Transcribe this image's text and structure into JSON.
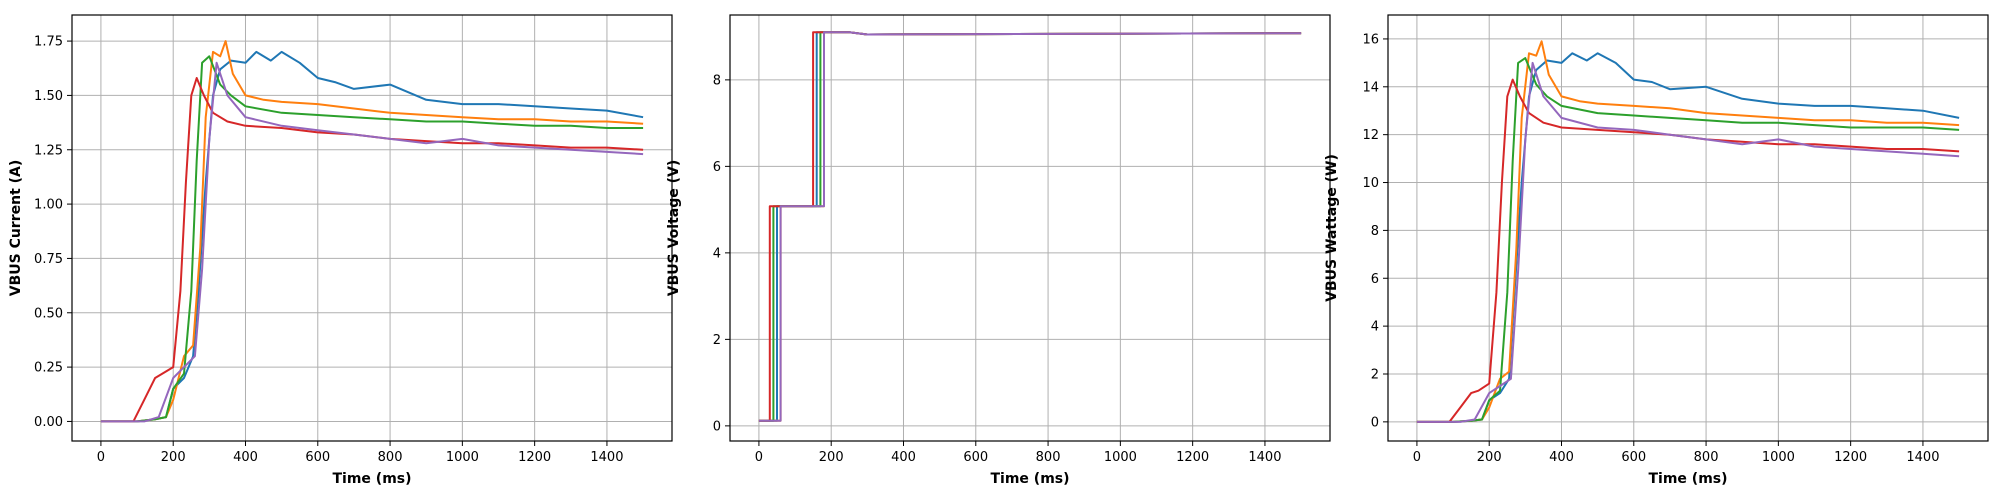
{
  "chart_data": [
    {
      "type": "line",
      "xlabel": "Time (ms)",
      "ylabel": "VBUS Current (A)",
      "xlim": [
        -80,
        1580
      ],
      "ylim": [
        -0.09,
        1.87
      ],
      "xticks": [
        0,
        200,
        400,
        600,
        800,
        1000,
        1200,
        1400
      ],
      "yticks": [
        0.0,
        0.25,
        0.5,
        0.75,
        1.0,
        1.25,
        1.5,
        1.75
      ],
      "ytick_labels": [
        "0.00",
        "0.25",
        "0.50",
        "0.75",
        "1.00",
        "1.25",
        "1.50",
        "1.75"
      ],
      "grid": true,
      "series": [
        {
          "color": "#1f77b4",
          "x": [
            0,
            100,
            150,
            180,
            200,
            230,
            255,
            270,
            290,
            310,
            330,
            360,
            400,
            430,
            470,
            500,
            550,
            600,
            650,
            700,
            800,
            900,
            1000,
            1100,
            1200,
            1300,
            1400,
            1500
          ],
          "y": [
            0,
            0,
            0.01,
            0.02,
            0.15,
            0.2,
            0.3,
            0.6,
            1.1,
            1.5,
            1.62,
            1.66,
            1.65,
            1.7,
            1.66,
            1.7,
            1.65,
            1.58,
            1.56,
            1.53,
            1.55,
            1.48,
            1.46,
            1.46,
            1.45,
            1.44,
            1.43,
            1.4
          ]
        },
        {
          "color": "#ff7f0e",
          "x": [
            0,
            100,
            150,
            180,
            200,
            230,
            255,
            275,
            290,
            310,
            330,
            345,
            365,
            400,
            450,
            500,
            600,
            700,
            800,
            900,
            1000,
            1100,
            1200,
            1300,
            1400,
            1500
          ],
          "y": [
            0,
            0,
            0.01,
            0.02,
            0.1,
            0.3,
            0.35,
            0.8,
            1.4,
            1.7,
            1.68,
            1.75,
            1.6,
            1.5,
            1.48,
            1.47,
            1.46,
            1.44,
            1.42,
            1.41,
            1.4,
            1.39,
            1.39,
            1.38,
            1.38,
            1.37
          ]
        },
        {
          "color": "#2ca02c",
          "x": [
            0,
            100,
            150,
            180,
            200,
            230,
            250,
            265,
            280,
            300,
            330,
            360,
            400,
            500,
            600,
            700,
            800,
            900,
            1000,
            1100,
            1200,
            1300,
            1400,
            1500
          ],
          "y": [
            0,
            0,
            0.01,
            0.02,
            0.15,
            0.22,
            0.6,
            1.2,
            1.65,
            1.68,
            1.55,
            1.5,
            1.45,
            1.42,
            1.41,
            1.4,
            1.39,
            1.38,
            1.38,
            1.37,
            1.36,
            1.36,
            1.35,
            1.35
          ]
        },
        {
          "color": "#d62728",
          "x": [
            0,
            90,
            120,
            150,
            170,
            200,
            220,
            235,
            250,
            265,
            285,
            310,
            350,
            400,
            500,
            600,
            700,
            800,
            900,
            1000,
            1100,
            1200,
            1300,
            1400,
            1500
          ],
          "y": [
            0,
            0,
            0.1,
            0.2,
            0.22,
            0.25,
            0.6,
            1.1,
            1.5,
            1.58,
            1.5,
            1.42,
            1.38,
            1.36,
            1.35,
            1.33,
            1.32,
            1.3,
            1.29,
            1.28,
            1.28,
            1.27,
            1.26,
            1.26,
            1.25
          ]
        },
        {
          "color": "#9467bd",
          "x": [
            0,
            120,
            160,
            200,
            230,
            260,
            280,
            300,
            320,
            350,
            400,
            500,
            600,
            700,
            800,
            900,
            1000,
            1100,
            1200,
            1300,
            1400,
            1500
          ],
          "y": [
            0,
            0,
            0.02,
            0.2,
            0.25,
            0.3,
            0.7,
            1.3,
            1.65,
            1.5,
            1.4,
            1.36,
            1.34,
            1.32,
            1.3,
            1.28,
            1.3,
            1.27,
            1.26,
            1.25,
            1.24,
            1.23
          ]
        }
      ]
    },
    {
      "type": "line",
      "xlabel": "Time (ms)",
      "ylabel": "VBUS Voltage (V)",
      "xlim": [
        -80,
        1580
      ],
      "ylim": [
        -0.35,
        9.5
      ],
      "xticks": [
        0,
        200,
        400,
        600,
        800,
        1000,
        1200,
        1400
      ],
      "yticks": [
        0,
        2,
        4,
        6,
        8
      ],
      "ytick_labels": [
        "0",
        "2",
        "4",
        "6",
        "8"
      ],
      "grid": true,
      "series": [
        {
          "color": "#1f77b4",
          "x": [
            0,
            50,
            50,
            160,
            160,
            250,
            300,
            1500
          ],
          "y": [
            0.12,
            0.12,
            5.08,
            5.08,
            9.1,
            9.1,
            9.05,
            9.08
          ]
        },
        {
          "color": "#ff7f0e",
          "x": [
            0,
            60,
            60,
            180,
            180,
            250,
            300,
            1500
          ],
          "y": [
            0.12,
            0.12,
            5.08,
            5.08,
            9.1,
            9.1,
            9.05,
            9.08
          ]
        },
        {
          "color": "#2ca02c",
          "x": [
            0,
            40,
            40,
            170,
            170,
            250,
            300,
            1500
          ],
          "y": [
            0.12,
            0.12,
            5.08,
            5.08,
            9.1,
            9.1,
            9.05,
            9.08
          ]
        },
        {
          "color": "#d62728",
          "x": [
            0,
            30,
            30,
            150,
            150,
            250,
            300,
            1500
          ],
          "y": [
            0.12,
            0.12,
            5.08,
            5.08,
            9.1,
            9.1,
            9.05,
            9.08
          ]
        },
        {
          "color": "#9467bd",
          "x": [
            0,
            60,
            60,
            180,
            180,
            250,
            300,
            1500
          ],
          "y": [
            0.12,
            0.12,
            5.08,
            5.08,
            9.1,
            9.1,
            9.05,
            9.08
          ]
        }
      ]
    },
    {
      "type": "line",
      "xlabel": "Time (ms)",
      "ylabel": "VBUS Wattage (W)",
      "xlim": [
        -80,
        1580
      ],
      "ylim": [
        -0.8,
        17.0
      ],
      "xticks": [
        0,
        200,
        400,
        600,
        800,
        1000,
        1200,
        1400
      ],
      "yticks": [
        0,
        2,
        4,
        6,
        8,
        10,
        12,
        14,
        16
      ],
      "ytick_labels": [
        "0",
        "2",
        "4",
        "6",
        "8",
        "10",
        "12",
        "14",
        "16"
      ],
      "grid": true,
      "series": [
        {
          "color": "#1f77b4",
          "x": [
            0,
            100,
            150,
            180,
            200,
            230,
            255,
            270,
            290,
            310,
            330,
            360,
            400,
            430,
            470,
            500,
            550,
            600,
            650,
            700,
            800,
            900,
            1000,
            1100,
            1200,
            1300,
            1400,
            1500
          ],
          "y": [
            0,
            0,
            0.05,
            0.1,
            0.9,
            1.2,
            1.8,
            5.4,
            10.0,
            13.6,
            14.7,
            15.1,
            15.0,
            15.4,
            15.1,
            15.4,
            15.0,
            14.3,
            14.2,
            13.9,
            14.0,
            13.5,
            13.3,
            13.2,
            13.2,
            13.1,
            13.0,
            12.7
          ]
        },
        {
          "color": "#ff7f0e",
          "x": [
            0,
            100,
            150,
            180,
            200,
            230,
            255,
            275,
            290,
            310,
            330,
            345,
            365,
            400,
            450,
            500,
            600,
            700,
            800,
            900,
            1000,
            1100,
            1200,
            1300,
            1400,
            1500
          ],
          "y": [
            0,
            0,
            0.05,
            0.1,
            0.6,
            1.8,
            2.1,
            7.2,
            12.7,
            15.4,
            15.3,
            15.9,
            14.5,
            13.6,
            13.4,
            13.3,
            13.2,
            13.1,
            12.9,
            12.8,
            12.7,
            12.6,
            12.6,
            12.5,
            12.5,
            12.4
          ]
        },
        {
          "color": "#2ca02c",
          "x": [
            0,
            100,
            150,
            180,
            200,
            230,
            250,
            265,
            280,
            300,
            330,
            360,
            400,
            500,
            600,
            700,
            800,
            900,
            1000,
            1100,
            1200,
            1300,
            1400,
            1500
          ],
          "y": [
            0,
            0,
            0.05,
            0.1,
            0.9,
            1.3,
            5.4,
            10.9,
            15.0,
            15.2,
            14.1,
            13.6,
            13.2,
            12.9,
            12.8,
            12.7,
            12.6,
            12.5,
            12.5,
            12.4,
            12.3,
            12.3,
            12.3,
            12.2
          ]
        },
        {
          "color": "#d62728",
          "x": [
            0,
            90,
            120,
            150,
            170,
            200,
            220,
            235,
            250,
            265,
            285,
            310,
            350,
            400,
            500,
            600,
            700,
            800,
            900,
            1000,
            1100,
            1200,
            1300,
            1400,
            1500
          ],
          "y": [
            0,
            0,
            0.6,
            1.2,
            1.3,
            1.6,
            5.4,
            10.0,
            13.6,
            14.3,
            13.6,
            12.9,
            12.5,
            12.3,
            12.2,
            12.1,
            12.0,
            11.8,
            11.7,
            11.6,
            11.6,
            11.5,
            11.4,
            11.4,
            11.3
          ]
        },
        {
          "color": "#9467bd",
          "x": [
            0,
            120,
            160,
            200,
            230,
            260,
            280,
            300,
            320,
            350,
            400,
            500,
            600,
            700,
            800,
            900,
            1000,
            1100,
            1200,
            1300,
            1400,
            1500
          ],
          "y": [
            0,
            0,
            0.1,
            1.2,
            1.5,
            1.8,
            6.3,
            11.8,
            15.0,
            13.6,
            12.7,
            12.3,
            12.2,
            12.0,
            11.8,
            11.6,
            11.8,
            11.5,
            11.4,
            11.3,
            11.2,
            11.1
          ]
        }
      ]
    }
  ]
}
